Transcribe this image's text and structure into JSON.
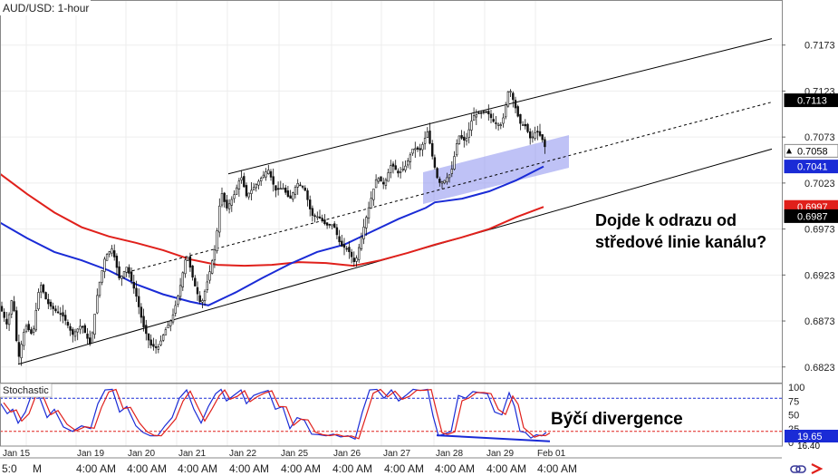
{
  "chart_data": [
    {
      "type": "candlestick",
      "title": "AUD/USD: 1-hour",
      "y_ticks": [
        "0.7173",
        "0.7123",
        "0.7073",
        "0.7023",
        "0.6973",
        "0.6923",
        "0.6873",
        "0.6823"
      ],
      "ylim": [
        0.6806,
        0.7222
      ],
      "x_date_labels": [
        "Jan 15",
        "Jan 19",
        "Jan 20",
        "Jan 21",
        "Jan 22",
        "Jan 25",
        "Jan 26",
        "Jan 27",
        "Jan 28",
        "Jan 29",
        "Feb 01"
      ],
      "x_time_labels": [
        "5:0",
        "M",
        "4:00 AM",
        "4:00 AM",
        "4:00 AM",
        "4:00 AM",
        "4:00 AM",
        "4:00 AM",
        "4:00 AM",
        "4:00 AM",
        "4:00 AM",
        "4:00 AM"
      ],
      "price_badges": [
        {
          "value": "0.7113",
          "color": "#000000"
        },
        {
          "value": "0.7058",
          "color": "#ffffff"
        },
        {
          "value": "0.7041",
          "color": "#1a2bd6"
        },
        {
          "value": "0.6997",
          "color": "#e0201b"
        },
        {
          "value": "0.6987",
          "color": "#000000"
        }
      ],
      "close_path": [
        [
          0,
          0.6889
        ],
        [
          8,
          0.6868
        ],
        [
          14,
          0.6902
        ],
        [
          20,
          0.683
        ],
        [
          28,
          0.6869
        ],
        [
          36,
          0.6857
        ],
        [
          44,
          0.6915
        ],
        [
          52,
          0.6893
        ],
        [
          60,
          0.6885
        ],
        [
          70,
          0.6878
        ],
        [
          80,
          0.6858
        ],
        [
          90,
          0.6869
        ],
        [
          100,
          0.6846
        ],
        [
          108,
          0.6906
        ],
        [
          116,
          0.6943
        ],
        [
          124,
          0.6952
        ],
        [
          132,
          0.6918
        ],
        [
          140,
          0.6932
        ],
        [
          150,
          0.6902
        ],
        [
          158,
          0.6868
        ],
        [
          166,
          0.6847
        ],
        [
          174,
          0.6843
        ],
        [
          182,
          0.6862
        ],
        [
          190,
          0.6876
        ],
        [
          198,
          0.6906
        ],
        [
          206,
          0.6947
        ],
        [
          214,
          0.6915
        ],
        [
          222,
          0.689
        ],
        [
          230,
          0.692
        ],
        [
          238,
          0.6955
        ],
        [
          244,
          0.7015
        ],
        [
          250,
          0.6995
        ],
        [
          258,
          0.7009
        ],
        [
          266,
          0.7031
        ],
        [
          272,
          0.7009
        ],
        [
          280,
          0.7018
        ],
        [
          288,
          0.7028
        ],
        [
          296,
          0.7038
        ],
        [
          304,
          0.7015
        ],
        [
          312,
          0.7018
        ],
        [
          320,
          0.7005
        ],
        [
          328,
          0.7023
        ],
        [
          336,
          0.7018
        ],
        [
          344,
          0.6988
        ],
        [
          352,
          0.6986
        ],
        [
          360,
          0.6977
        ],
        [
          368,
          0.6978
        ],
        [
          376,
          0.6955
        ],
        [
          384,
          0.6951
        ],
        [
          392,
          0.6935
        ],
        [
          400,
          0.6969
        ],
        [
          408,
          0.7
        ],
        [
          416,
          0.703
        ],
        [
          424,
          0.7021
        ],
        [
          432,
          0.7044
        ],
        [
          440,
          0.7033
        ],
        [
          448,
          0.7042
        ],
        [
          456,
          0.7061
        ],
        [
          464,
          0.7059
        ],
        [
          472,
          0.7079
        ],
        [
          478,
          0.7048
        ],
        [
          484,
          0.7023
        ],
        [
          490,
          0.7025
        ],
        [
          498,
          0.7034
        ],
        [
          506,
          0.7075
        ],
        [
          514,
          0.7068
        ],
        [
          522,
          0.7096
        ],
        [
          530,
          0.7099
        ],
        [
          538,
          0.71
        ],
        [
          546,
          0.7088
        ],
        [
          554,
          0.7086
        ],
        [
          562,
          0.7128
        ],
        [
          568,
          0.7108
        ],
        [
          574,
          0.7088
        ],
        [
          580,
          0.7085
        ],
        [
          586,
          0.707
        ],
        [
          592,
          0.708
        ],
        [
          598,
          0.7072
        ],
        [
          603,
          0.7058
        ]
      ],
      "ma_200": {
        "color": "#e0201b",
        "points": [
          [
            0,
            0.7033
          ],
          [
            30,
            0.7011
          ],
          [
            60,
            0.6991
          ],
          [
            90,
            0.6975
          ],
          [
            120,
            0.6965
          ],
          [
            150,
            0.6958
          ],
          [
            180,
            0.695
          ],
          [
            210,
            0.694
          ],
          [
            240,
            0.6934
          ],
          [
            270,
            0.6933
          ],
          [
            300,
            0.6934
          ],
          [
            330,
            0.6937
          ],
          [
            360,
            0.6936
          ],
          [
            390,
            0.6933
          ],
          [
            420,
            0.6939
          ],
          [
            450,
            0.6947
          ],
          [
            480,
            0.6956
          ],
          [
            510,
            0.6964
          ],
          [
            540,
            0.6973
          ],
          [
            570,
            0.6986
          ],
          [
            600,
            0.6997
          ]
        ]
      },
      "ma_100": {
        "color": "#1a2bd6",
        "points": [
          [
            0,
            0.698
          ],
          [
            30,
            0.6963
          ],
          [
            60,
            0.6948
          ],
          [
            90,
            0.6939
          ],
          [
            120,
            0.6928
          ],
          [
            150,
            0.6913
          ],
          [
            180,
            0.6902
          ],
          [
            210,
            0.6894
          ],
          [
            230,
            0.689
          ],
          [
            260,
            0.6904
          ],
          [
            290,
            0.692
          ],
          [
            320,
            0.6935
          ],
          [
            350,
            0.6948
          ],
          [
            380,
            0.6956
          ],
          [
            410,
            0.697
          ],
          [
            440,
            0.6984
          ],
          [
            470,
            0.6996
          ],
          [
            480,
            0.7002
          ],
          [
            510,
            0.7006
          ],
          [
            540,
            0.7014
          ],
          [
            570,
            0.7026
          ],
          [
            600,
            0.7041
          ]
        ]
      },
      "channel": {
        "upper": [
          [
            252,
            0.7033
          ],
          [
            852,
            0.718
          ]
        ],
        "mid": [
          [
            140,
            0.6926
          ],
          [
            852,
            0.7111
          ]
        ],
        "lower": [
          [
            20,
            0.6826
          ],
          [
            852,
            0.706
          ]
        ]
      },
      "support_zone": {
        "price_low": 0.7013,
        "price_high": 0.7058
      },
      "annotation": "Dojde k odrazu od\nstředové linie kanálu?"
    },
    {
      "type": "line",
      "title": "Stochastic",
      "y_ticks": [
        "100",
        "75",
        "50",
        "25",
        "0"
      ],
      "ylim": [
        0,
        100
      ],
      "levels": [
        80,
        20
      ],
      "value_badge": {
        "value": "19.65",
        "extra": "16.40"
      },
      "k_line": {
        "color": "#1a2bd6",
        "points": [
          [
            0,
            72
          ],
          [
            8,
            52
          ],
          [
            14,
            60
          ],
          [
            20,
            35
          ],
          [
            28,
            55
          ],
          [
            36,
            92
          ],
          [
            44,
            80
          ],
          [
            52,
            45
          ],
          [
            60,
            60
          ],
          [
            70,
            28
          ],
          [
            80,
            20
          ],
          [
            90,
            30
          ],
          [
            100,
            25
          ],
          [
            108,
            70
          ],
          [
            116,
            95
          ],
          [
            124,
            96
          ],
          [
            132,
            55
          ],
          [
            140,
            65
          ],
          [
            150,
            30
          ],
          [
            158,
            18
          ],
          [
            166,
            12
          ],
          [
            174,
            12
          ],
          [
            182,
            30
          ],
          [
            190,
            45
          ],
          [
            198,
            80
          ],
          [
            206,
            95
          ],
          [
            214,
            60
          ],
          [
            222,
            35
          ],
          [
            230,
            65
          ],
          [
            238,
            88
          ],
          [
            244,
            96
          ],
          [
            250,
            75
          ],
          [
            258,
            85
          ],
          [
            266,
            95
          ],
          [
            272,
            70
          ],
          [
            280,
            85
          ],
          [
            288,
            90
          ],
          [
            296,
            94
          ],
          [
            304,
            60
          ],
          [
            312,
            65
          ],
          [
            320,
            25
          ],
          [
            328,
            45
          ],
          [
            336,
            40
          ],
          [
            344,
            15
          ],
          [
            352,
            14
          ],
          [
            360,
            12
          ],
          [
            368,
            15
          ],
          [
            376,
            10
          ],
          [
            384,
            12
          ],
          [
            392,
            6
          ],
          [
            400,
            55
          ],
          [
            408,
            95
          ],
          [
            416,
            96
          ],
          [
            424,
            80
          ],
          [
            432,
            95
          ],
          [
            440,
            75
          ],
          [
            448,
            85
          ],
          [
            456,
            96
          ],
          [
            464,
            94
          ],
          [
            472,
            96
          ],
          [
            478,
            48
          ],
          [
            484,
            12
          ],
          [
            490,
            15
          ],
          [
            498,
            20
          ],
          [
            506,
            85
          ],
          [
            514,
            80
          ],
          [
            522,
            92
          ],
          [
            530,
            90
          ],
          [
            538,
            88
          ],
          [
            546,
            55
          ],
          [
            554,
            50
          ],
          [
            562,
            90
          ],
          [
            568,
            65
          ],
          [
            574,
            20
          ],
          [
            580,
            18
          ],
          [
            586,
            8
          ],
          [
            592,
            14
          ],
          [
            598,
            12
          ],
          [
            603,
            18
          ]
        ]
      },
      "d_line": {
        "color": "#e0201b",
        "offset": 4
      },
      "divergence_line": {
        "color": "#1a2bd6",
        "points": [
          [
            482,
            13
          ],
          [
            607,
            2
          ]
        ]
      },
      "annotation": "Býčí divergence"
    }
  ],
  "footer_icons": [
    "sync-icon",
    "tradingview-logo-icon"
  ]
}
